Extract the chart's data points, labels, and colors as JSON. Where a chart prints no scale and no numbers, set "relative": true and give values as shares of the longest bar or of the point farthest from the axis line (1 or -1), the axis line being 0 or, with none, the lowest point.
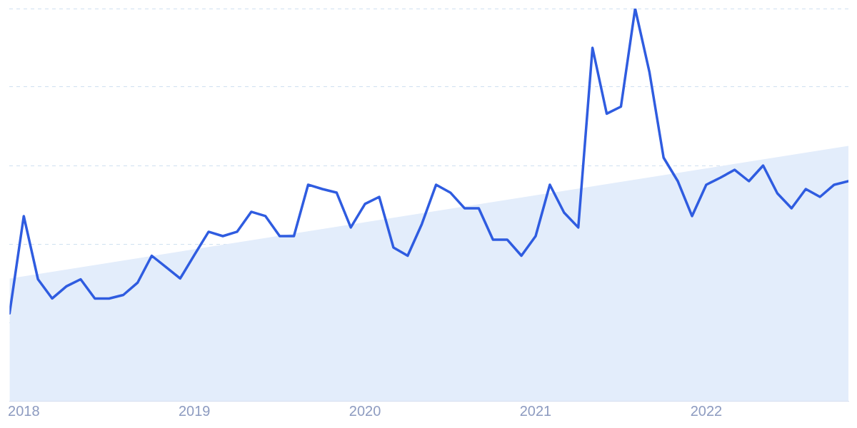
{
  "chart_data": {
    "type": "line",
    "relative": true,
    "grid": "y",
    "legend": false,
    "marker": "none",
    "line_style": "solid",
    "xlim": [
      "2017-12",
      "2022-11"
    ],
    "xticks": [
      "2018",
      "2019",
      "2020",
      "2021",
      "2022"
    ],
    "series": [
      {
        "type": "area",
        "color": "#e3edfb",
        "x": [
          "2017-12",
          "2022-11"
        ],
        "values": [
          0.312,
          0.65
        ]
      },
      {
        "color": "#2f5ce0",
        "x": [
          "2017-12",
          "2018-01",
          "2018-02",
          "2018-03",
          "2018-04",
          "2018-05",
          "2018-06",
          "2018-07",
          "2018-08",
          "2018-09",
          "2018-10",
          "2018-11",
          "2018-12",
          "2019-01",
          "2019-02",
          "2019-03",
          "2019-04",
          "2019-05",
          "2019-06",
          "2019-07",
          "2019-08",
          "2019-09",
          "2019-10",
          "2019-11",
          "2019-12",
          "2020-01",
          "2020-02",
          "2020-03",
          "2020-04",
          "2020-05",
          "2020-06",
          "2020-07",
          "2020-08",
          "2020-09",
          "2020-10",
          "2020-11",
          "2020-12",
          "2021-01",
          "2021-02",
          "2021-03",
          "2021-04",
          "2021-05",
          "2021-06",
          "2021-07",
          "2021-08",
          "2021-09",
          "2021-10",
          "2021-11",
          "2021-12",
          "2022-01",
          "2022-02",
          "2022-03",
          "2022-04",
          "2022-05",
          "2022-06",
          "2022-07",
          "2022-08",
          "2022-09",
          "2022-10",
          "2022-11"
        ],
        "values": [
          0.223,
          0.471,
          0.31,
          0.261,
          0.292,
          0.31,
          0.261,
          0.261,
          0.27,
          0.301,
          0.37,
          0.341,
          0.312,
          0.372,
          0.431,
          0.42,
          0.431,
          0.482,
          0.471,
          0.42,
          0.42,
          0.551,
          0.54,
          0.531,
          0.442,
          0.502,
          0.52,
          0.391,
          0.37,
          0.451,
          0.551,
          0.531,
          0.491,
          0.491,
          0.411,
          0.411,
          0.37,
          0.42,
          0.551,
          0.48,
          0.442,
          0.9,
          0.732,
          0.75,
          1.0,
          0.839,
          0.62,
          0.56,
          0.471,
          0.551,
          0.569,
          0.589,
          0.56,
          0.6,
          0.529,
          0.491,
          0.54,
          0.52,
          0.551,
          0.56
        ]
      }
    ]
  }
}
